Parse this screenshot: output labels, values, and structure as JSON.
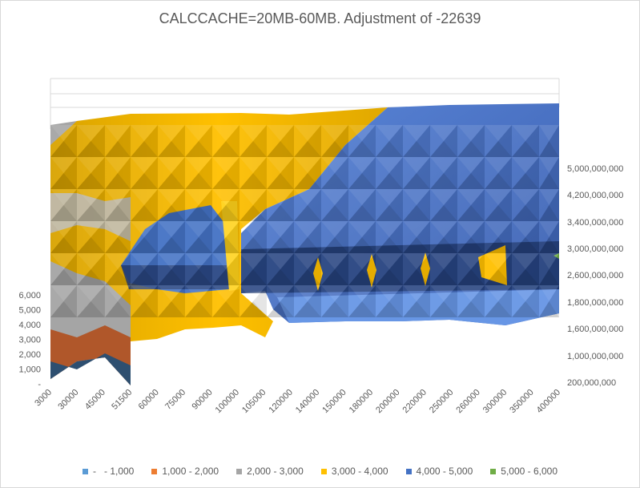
{
  "chart_data": {
    "type": "surface",
    "title": "CALCCACHE=20MB-60MB. Adjustment of -22639",
    "x_categories": [
      "3000",
      "30000",
      "45000",
      "51500",
      "60000",
      "75000",
      "90000",
      "100000",
      "105000",
      "120000",
      "140000",
      "150000",
      "180000",
      "200000",
      "220000",
      "250000",
      "260000",
      "300000",
      "350000",
      "400000"
    ],
    "depth_axis_labels": [
      "5,000,000,000",
      "4,200,000,000",
      "3,400,000,000",
      "3,000,000,000",
      "2,600,000,000",
      "1,800,000,000",
      "1,600,000,000",
      "1,000,000,000",
      "200,000,000"
    ],
    "z_axis_labels": [
      "6,000",
      "5,000",
      "4,000",
      "3,000",
      "2,000",
      "1,000",
      "-"
    ],
    "z_range": [
      0,
      6000
    ],
    "bands": [
      {
        "label": "-   - 1,000",
        "color": "#5b9bd5"
      },
      {
        "label": "1,000 - 2,000",
        "color": "#ed7d31"
      },
      {
        "label": "2,000 - 3,000",
        "color": "#a5a5a5"
      },
      {
        "label": "3,000 - 4,000",
        "color": "#ffc000"
      },
      {
        "label": "4,000 - 5,000",
        "color": "#4472c4"
      },
      {
        "label": "5,000 - 6,000",
        "color": "#70ad47"
      }
    ]
  }
}
